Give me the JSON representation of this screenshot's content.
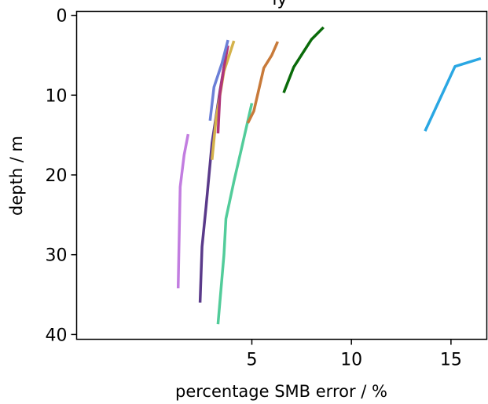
{
  "chart_data": {
    "type": "line",
    "title_fragment": "ly",
    "xlabel": "percentage SMB error / %",
    "ylabel": "depth / m",
    "xlim": [
      -3.8,
      16.8
    ],
    "ylim": [
      40.6,
      -0.5
    ],
    "y_inverted": true,
    "grid": false,
    "x_ticks": [
      5,
      10,
      15
    ],
    "y_ticks": [
      0,
      10,
      20,
      30,
      40
    ],
    "series": [
      {
        "color": "#c27de0",
        "points": [
          [
            1.3,
            34.2
          ],
          [
            1.4,
            21.5
          ],
          [
            1.6,
            17.5
          ],
          [
            1.8,
            14.9
          ]
        ]
      },
      {
        "color": "#5a3a8a",
        "points": [
          [
            2.4,
            36.0
          ],
          [
            2.5,
            29.0
          ],
          [
            2.7,
            24.0
          ],
          [
            3.0,
            16.0
          ],
          [
            3.4,
            9.5
          ],
          [
            3.6,
            6.5
          ]
        ]
      },
      {
        "color": "#52cc9a",
        "points": [
          [
            3.3,
            38.7
          ],
          [
            3.6,
            30.0
          ],
          [
            3.7,
            25.5
          ],
          [
            4.1,
            20.8
          ],
          [
            4.5,
            16.5
          ],
          [
            5.0,
            11.0
          ]
        ]
      },
      {
        "color": "#d4b24a",
        "points": [
          [
            3.0,
            18.1
          ],
          [
            3.2,
            13.0
          ],
          [
            3.6,
            7.0
          ],
          [
            4.1,
            3.2
          ]
        ]
      },
      {
        "color": "#b0357a",
        "points": [
          [
            3.3,
            14.8
          ],
          [
            3.4,
            9.8
          ],
          [
            3.6,
            6.5
          ],
          [
            3.8,
            3.8
          ]
        ]
      },
      {
        "color": "#6b7fd7",
        "points": [
          [
            2.9,
            13.2
          ],
          [
            3.1,
            9.0
          ],
          [
            3.5,
            6.0
          ],
          [
            3.8,
            3.1
          ]
        ]
      },
      {
        "color": "#c87a3a",
        "points": [
          [
            4.8,
            13.5
          ],
          [
            5.1,
            12.0
          ],
          [
            5.6,
            6.6
          ],
          [
            6.0,
            5.0
          ],
          [
            6.3,
            3.3
          ]
        ]
      },
      {
        "color": "#0a6b0a",
        "points": [
          [
            6.6,
            9.7
          ],
          [
            7.1,
            6.5
          ],
          [
            8.0,
            3.0
          ],
          [
            8.6,
            1.5
          ]
        ]
      },
      {
        "color": "#2aa7e3",
        "points": [
          [
            13.7,
            14.5
          ],
          [
            15.2,
            6.4
          ],
          [
            16.5,
            5.4
          ]
        ]
      }
    ]
  }
}
